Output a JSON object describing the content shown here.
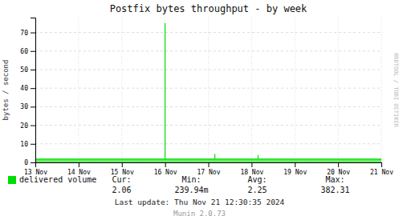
{
  "chart_data": {
    "type": "area",
    "title": "Postfix bytes throughput - by week",
    "ylabel": "bytes / second",
    "x": [
      0,
      3.0,
      3.0,
      3.0,
      4.15,
      4.15,
      4.15,
      5.15,
      5.15,
      5.15,
      8
    ],
    "series": [
      {
        "name": "delivered volume",
        "color": "#00dd00",
        "values": [
          1.8,
          1.8,
          75.0,
          1.8,
          1.8,
          4.5,
          1.8,
          1.8,
          4.0,
          1.8,
          1.8
        ]
      }
    ],
    "xlim": [
      0,
      8
    ],
    "xticks": [
      {
        "value": 0,
        "label": "13 Nov"
      },
      {
        "value": 1,
        "label": "14 Nov"
      },
      {
        "value": 2,
        "label": "15 Nov"
      },
      {
        "value": 3,
        "label": "16 Nov"
      },
      {
        "value": 4,
        "label": "17 Nov"
      },
      {
        "value": 5,
        "label": "18 Nov"
      },
      {
        "value": 6,
        "label": "19 Nov"
      },
      {
        "value": 7,
        "label": "20 Nov"
      },
      {
        "value": 8,
        "label": "21 Nov"
      }
    ],
    "ylim": [
      0,
      78
    ],
    "yticks": [
      0,
      10,
      20,
      30,
      40,
      50,
      60,
      70
    ],
    "grid": true,
    "legend": "bottom",
    "annotations": [
      "Cur:",
      "Min:",
      "Avg:",
      "Max:",
      "2.06",
      "239.94m",
      "2.25",
      "382.31",
      "Last update:  Thu Nov 21 12:30:35 2024",
      "Munin 2.0.73",
      "RRDTOOL / TOBI OETIKER"
    ]
  }
}
